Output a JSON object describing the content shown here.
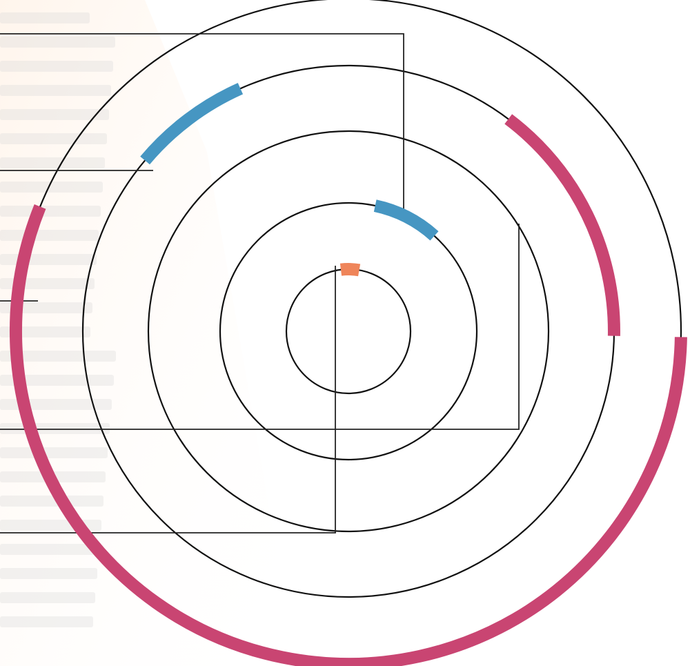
{
  "colors": {
    "background": "#ffffff",
    "bg_wash": "#fff4ea",
    "bg_text": "#d9d9d9",
    "ring": "#111111",
    "leader": "#222222",
    "blue": "#4696c2",
    "pink": "#c94572",
    "orange": "#ef855a"
  },
  "diagram": {
    "ring_count": 5,
    "segments": [
      {
        "ring": 1,
        "color": "orange",
        "start_deg": -7,
        "end_deg": 10
      },
      {
        "ring": 2,
        "color": "blue",
        "start_deg": 12,
        "end_deg": 42
      },
      {
        "ring": 4,
        "color": "blue",
        "start_deg": -50,
        "end_deg": -24
      },
      {
        "ring": 4,
        "color": "pink",
        "start_deg": 37,
        "end_deg": 91
      },
      {
        "ring": 5,
        "color": "pink",
        "start_deg": 91,
        "end_deg": 292
      }
    ]
  }
}
